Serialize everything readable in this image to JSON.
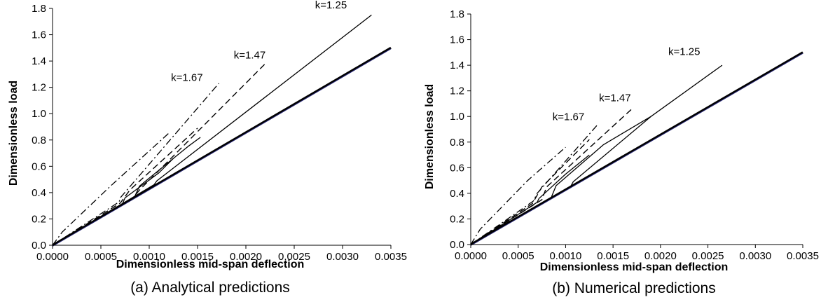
{
  "chart_data": [
    {
      "type": "line",
      "caption": "(a) Analytical predictions",
      "xlabel": "Dimensionless mid-span deflection",
      "ylabel": "Dimensionless load",
      "xlim": [
        0,
        0.0035
      ],
      "ylim": [
        0,
        1.8
      ],
      "xticks": [
        "0.0000",
        "0.0005",
        "0.0010",
        "0.0015",
        "0.0020",
        "0.0025",
        "0.0030",
        "0.0035"
      ],
      "yticks": [
        "0.0",
        "0.2",
        "0.4",
        "0.6",
        "0.8",
        "1.0",
        "1.2",
        "1.4",
        "1.6",
        "1.8"
      ],
      "grid": false,
      "annotations": [
        {
          "text": "k=1.25",
          "x": 0.00288,
          "y": 1.8
        },
        {
          "text": "k=1.47",
          "x": 0.00204,
          "y": 1.42
        },
        {
          "text": "k=1.67",
          "x": 0.00139,
          "y": 1.25
        }
      ],
      "series": [
        {
          "style": "thick",
          "x": [
            0,
            0.0035
          ],
          "y": [
            0,
            1.5
          ]
        },
        {
          "style": "solid",
          "x": [
            0,
            0.00105,
            0.00108,
            0.0033
          ],
          "y": [
            0,
            0.46,
            0.49,
            1.75
          ]
        },
        {
          "style": "solid",
          "x": [
            0,
            0.00085,
            0.0009,
            0.0014,
            0.00153
          ],
          "y": [
            0,
            0.37,
            0.45,
            0.75,
            0.82
          ]
        },
        {
          "style": "solid",
          "x": [
            0,
            0.00072,
            0.00075,
            0.0011,
            0.00125
          ],
          "y": [
            0,
            0.31,
            0.36,
            0.55,
            0.66
          ]
        },
        {
          "style": "dashed",
          "x": [
            0,
            0.00082,
            0.0009,
            0.0022
          ],
          "y": [
            0,
            0.35,
            0.42,
            1.38
          ]
        },
        {
          "style": "dashed",
          "x": [
            0,
            0.0007,
            0.0008,
            0.0015
          ],
          "y": [
            0,
            0.32,
            0.42,
            0.89
          ]
        },
        {
          "style": "dashdot",
          "x": [
            0,
            0.00069,
            0.0007,
            0.00172
          ],
          "y": [
            0,
            0.33,
            0.36,
            1.23
          ]
        },
        {
          "style": "dashdot",
          "x": [
            0,
            0.0001,
            0.0006,
            0.0012
          ],
          "y": [
            0,
            0.1,
            0.45,
            0.85
          ]
        }
      ]
    },
    {
      "type": "line",
      "caption": "(b) Numerical predictions",
      "xlabel": "Dimensionless mid-span deflection",
      "ylabel": "Dimensionless load",
      "xlim": [
        0,
        0.0035
      ],
      "ylim": [
        0,
        1.8
      ],
      "xticks": [
        "0.0000",
        "0.0005",
        "0.0010",
        "0.0015",
        "0.0020",
        "0.0025",
        "0.0030",
        "0.0035"
      ],
      "yticks": [
        "0.0",
        "0.2",
        "0.4",
        "0.6",
        "0.8",
        "1.0",
        "1.2",
        "1.4",
        "1.6",
        "1.8"
      ],
      "grid": false,
      "annotations": [
        {
          "text": "k=1.25",
          "x": 0.00225,
          "y": 1.48
        },
        {
          "text": "k=1.47",
          "x": 0.00152,
          "y": 1.12
        },
        {
          "text": "k=1.67",
          "x": 0.00103,
          "y": 0.97
        }
      ],
      "series": [
        {
          "style": "thick",
          "x": [
            0,
            0.0035
          ],
          "y": [
            0,
            1.5
          ]
        },
        {
          "style": "solid",
          "x": [
            0,
            0.00105,
            0.00108,
            0.0019,
            0.00265
          ],
          "y": [
            0,
            0.45,
            0.49,
            1.0,
            1.4
          ]
        },
        {
          "style": "solid",
          "x": [
            0,
            0.00085,
            0.0009,
            0.0014,
            0.0019
          ],
          "y": [
            0,
            0.37,
            0.46,
            0.78,
            1.0
          ]
        },
        {
          "style": "solid",
          "x": [
            0,
            0.0007,
            0.00072,
            0.001,
            0.00125
          ],
          "y": [
            0,
            0.33,
            0.36,
            0.55,
            0.7
          ]
        },
        {
          "style": "dashed",
          "x": [
            0,
            0.00075,
            0.0008,
            0.0017
          ],
          "y": [
            0,
            0.35,
            0.45,
            1.06
          ]
        },
        {
          "style": "dashed",
          "x": [
            0,
            0.00065,
            0.00075,
            0.00125
          ],
          "y": [
            0,
            0.32,
            0.45,
            0.82
          ]
        },
        {
          "style": "dashdot",
          "x": [
            0,
            0.00066,
            0.0007,
            0.00133
          ],
          "y": [
            0,
            0.34,
            0.4,
            0.93
          ]
        },
        {
          "style": "dashdot",
          "x": [
            0,
            0.0001,
            0.0006,
            0.001
          ],
          "y": [
            0,
            0.12,
            0.5,
            0.76
          ]
        }
      ]
    }
  ]
}
